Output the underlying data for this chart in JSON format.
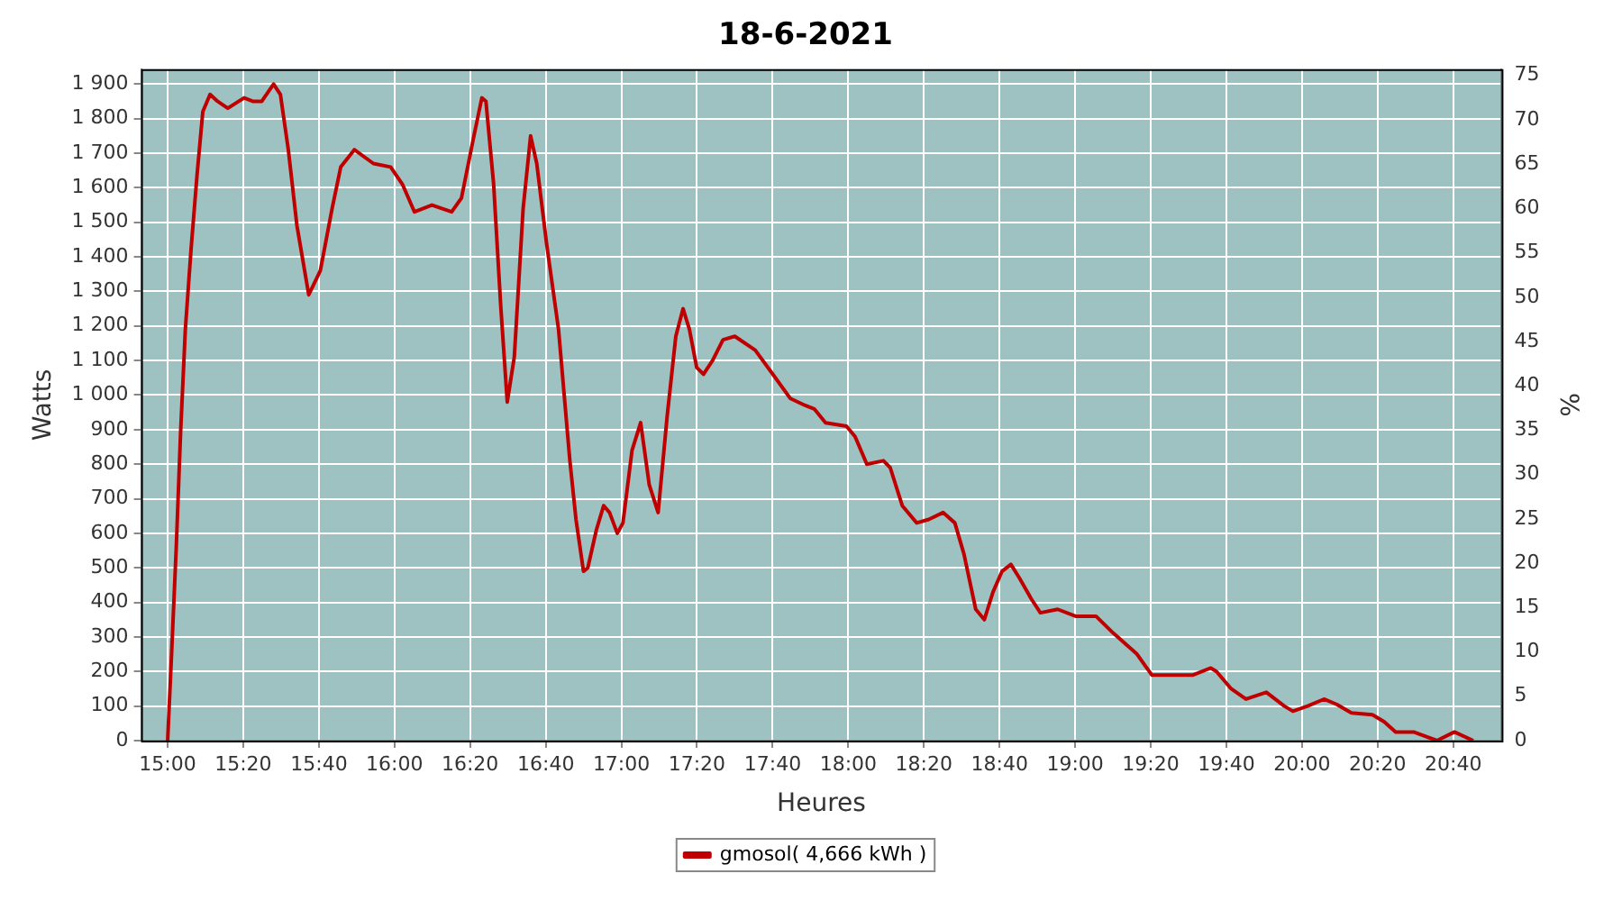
{
  "chart_data": {
    "type": "line",
    "title": "18-6-2021",
    "xlabel": "Heures",
    "ylabel": "Watts",
    "y2label": "%",
    "x": [
      15,
      15.018,
      15.038,
      15.057,
      15.078,
      15.103,
      15.13,
      15.155,
      15.187,
      15.22,
      15.265,
      15.337,
      15.375,
      15.415,
      15.467,
      15.497,
      15.532,
      15.57,
      15.622,
      15.673,
      15.725,
      15.763,
      15.823,
      15.907,
      15.983,
      16.035,
      16.088,
      16.165,
      16.252,
      16.295,
      16.347,
      16.385,
      16.403,
      16.437,
      16.468,
      16.497,
      16.528,
      16.567,
      16.6,
      16.627,
      16.67,
      16.723,
      16.773,
      16.8,
      16.833,
      16.852,
      16.89,
      16.922,
      16.948,
      16.982,
      17.007,
      17.047,
      17.085,
      17.123,
      17.162,
      17.202,
      17.24,
      17.272,
      17.3,
      17.332,
      17.362,
      17.402,
      17.448,
      17.5,
      17.59,
      17.668,
      17.745,
      17.81,
      17.85,
      17.9,
      17.992,
      18.03,
      18.082,
      18.155,
      18.185,
      18.238,
      18.302,
      18.355,
      18.418,
      18.47,
      18.51,
      18.562,
      18.6,
      18.638,
      18.678,
      18.717,
      18.755,
      18.807,
      18.847,
      18.923,
      19.002,
      19.092,
      19.17,
      19.273,
      19.338,
      19.403,
      19.52,
      19.598,
      19.623,
      19.688,
      19.753,
      19.843,
      19.922,
      19.96,
      20.025,
      20.097,
      20.153,
      20.218,
      20.31,
      20.362,
      20.413,
      20.492,
      20.595,
      20.672,
      20.755
    ],
    "series": [
      {
        "name": "gmosol( 4,666 kWh )",
        "color": "#c00000",
        "values": [
          0,
          260,
          560,
          890,
          1190,
          1420,
          1640,
          1820,
          1870,
          1850,
          1830,
          1860,
          1850,
          1850,
          1900,
          1870,
          1710,
          1490,
          1290,
          1360,
          1540,
          1660,
          1710,
          1670,
          1660,
          1610,
          1530,
          1550,
          1530,
          1570,
          1740,
          1860,
          1850,
          1610,
          1260,
          980,
          1110,
          1540,
          1750,
          1670,
          1440,
          1190,
          810,
          640,
          490,
          500,
          610,
          680,
          660,
          600,
          630,
          840,
          920,
          740,
          660,
          940,
          1170,
          1250,
          1190,
          1080,
          1060,
          1100,
          1160,
          1170,
          1130,
          1060,
          990,
          970,
          960,
          920,
          910,
          880,
          800,
          810,
          790,
          680,
          630,
          640,
          660,
          630,
          540,
          380,
          350,
          430,
          490,
          510,
          470,
          410,
          370,
          380,
          360,
          360,
          310,
          250,
          190,
          190,
          190,
          210,
          200,
          150,
          120,
          140,
          100,
          85,
          100,
          120,
          105,
          80,
          75,
          55,
          25,
          25,
          0,
          25,
          0
        ]
      }
    ],
    "xlim": [
      14.883,
      20.88
    ],
    "xticks": [
      {
        "value": 15,
        "label": "15:00"
      },
      {
        "value": 15.333,
        "label": "15:20"
      },
      {
        "value": 15.667,
        "label": "15:40"
      },
      {
        "value": 16,
        "label": "16:00"
      },
      {
        "value": 16.333,
        "label": "16:20"
      },
      {
        "value": 16.667,
        "label": "16:40"
      },
      {
        "value": 17,
        "label": "17:00"
      },
      {
        "value": 17.333,
        "label": "17:20"
      },
      {
        "value": 17.667,
        "label": "17:40"
      },
      {
        "value": 18,
        "label": "18:00"
      },
      {
        "value": 18.333,
        "label": "18:20"
      },
      {
        "value": 18.667,
        "label": "18:40"
      },
      {
        "value": 19,
        "label": "19:00"
      },
      {
        "value": 19.333,
        "label": "19:20"
      },
      {
        "value": 19.667,
        "label": "19:40"
      },
      {
        "value": 20,
        "label": "20:00"
      },
      {
        "value": 20.333,
        "label": "20:20"
      },
      {
        "value": 20.667,
        "label": "20:40"
      }
    ],
    "ylim": [
      0,
      1943
    ],
    "yticks": [
      0,
      100,
      200,
      300,
      400,
      500,
      600,
      700,
      800,
      900,
      {
        "value": 1000,
        "label": "1 000"
      },
      {
        "value": 1100,
        "label": "1 100"
      },
      {
        "value": 1200,
        "label": "1 200"
      },
      {
        "value": 1300,
        "label": "1 300"
      },
      {
        "value": 1400,
        "label": "1 400"
      },
      {
        "value": 1500,
        "label": "1 500"
      },
      {
        "value": 1600,
        "label": "1 600"
      },
      {
        "value": 1700,
        "label": "1 700"
      },
      {
        "value": 1800,
        "label": "1 800"
      },
      {
        "value": 1900,
        "label": "1 900"
      }
    ],
    "y2lim": [
      0,
      75.7
    ],
    "y2ticks": [
      0,
      5,
      10,
      15,
      20,
      25,
      30,
      35,
      40,
      45,
      50,
      55,
      60,
      65,
      70,
      75
    ],
    "grid": true,
    "legend": "bottom",
    "marker": "none",
    "line_style": "solid"
  }
}
